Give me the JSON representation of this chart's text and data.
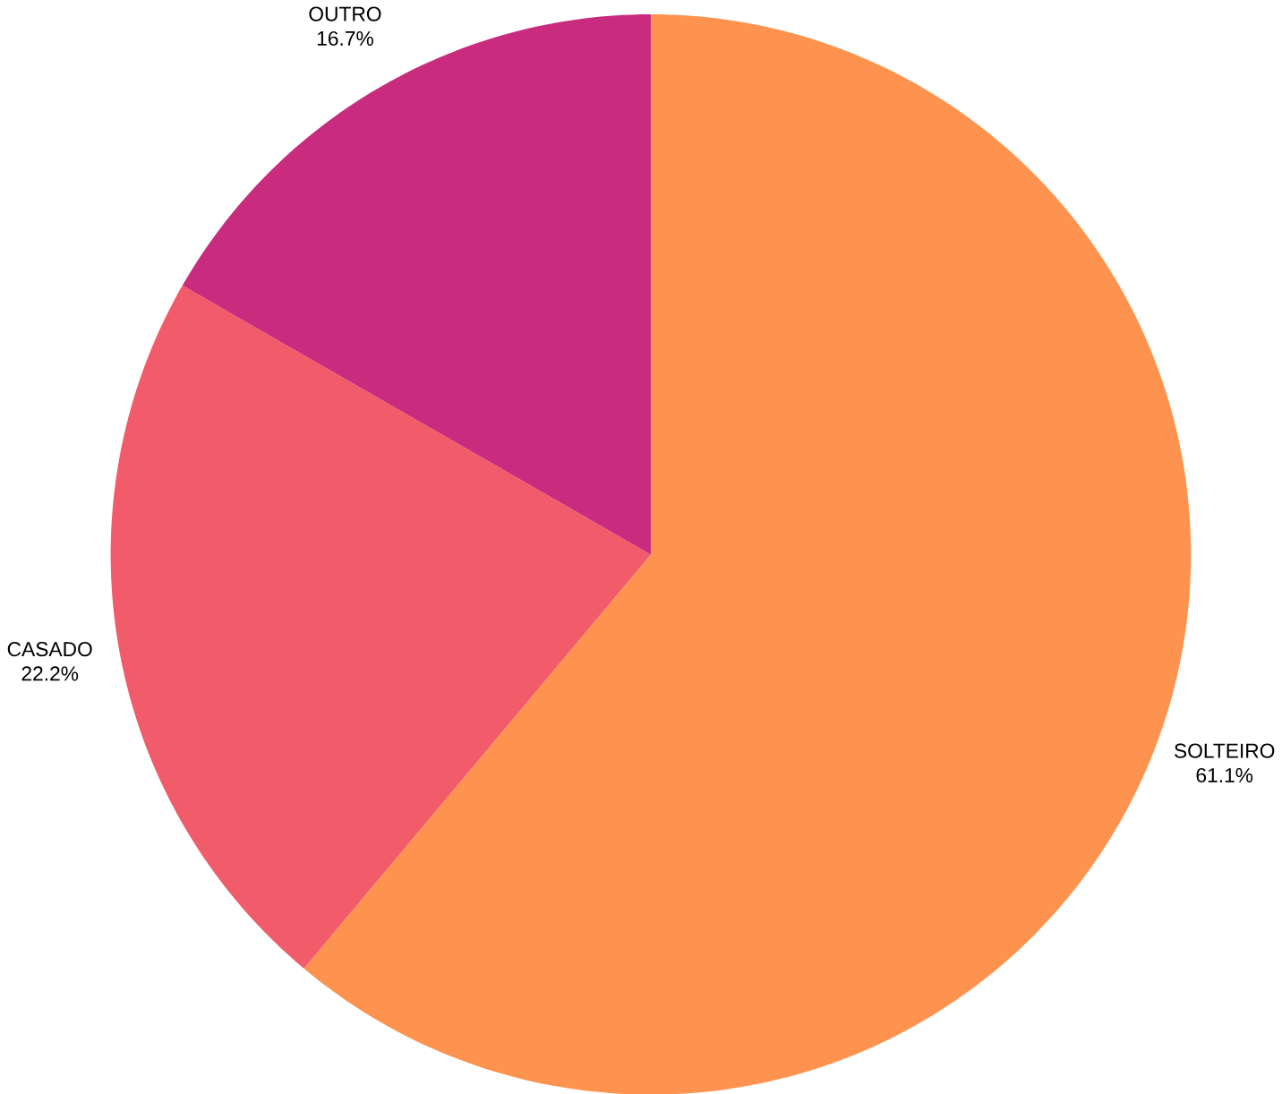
{
  "chart_data": {
    "type": "pie",
    "categories": [
      "SOLTEIRO",
      "CASADO",
      "OUTRO"
    ],
    "values": [
      61.1,
      22.2,
      16.7
    ],
    "value_labels": [
      "61.1%",
      "22.2%",
      "16.7%"
    ],
    "colors": [
      "#fd934f",
      "#f25b69",
      "#c92b7e"
    ]
  }
}
